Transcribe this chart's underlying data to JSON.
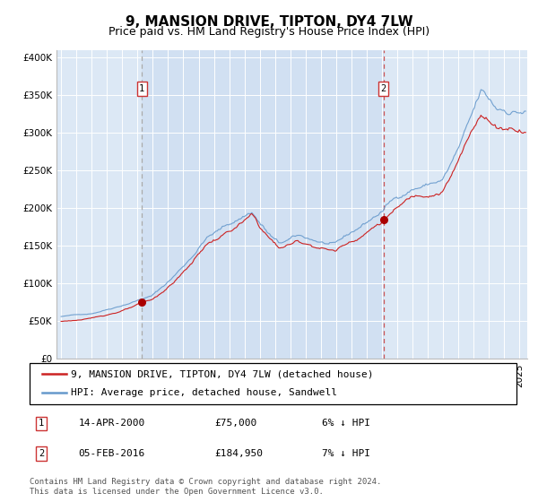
{
  "title": "9, MANSION DRIVE, TIPTON, DY4 7LW",
  "subtitle": "Price paid vs. HM Land Registry's House Price Index (HPI)",
  "xlim_start": 1994.7,
  "xlim_end": 2025.5,
  "ylim_min": 0,
  "ylim_max": 410000,
  "yticks": [
    0,
    50000,
    100000,
    150000,
    200000,
    250000,
    300000,
    350000,
    400000
  ],
  "ytick_labels": [
    "£0",
    "£50K",
    "£100K",
    "£150K",
    "£200K",
    "£250K",
    "£300K",
    "£350K",
    "£400K"
  ],
  "sale1_year": 2000.29,
  "sale1_price": 75000,
  "sale2_year": 2016.09,
  "sale2_price": 184950,
  "legend_line1": "9, MANSION DRIVE, TIPTON, DY4 7LW (detached house)",
  "legend_line2": "HPI: Average price, detached house, Sandwell",
  "annotation1_date": "14-APR-2000",
  "annotation1_price": "£75,000",
  "annotation1_pct": "6% ↓ HPI",
  "annotation2_date": "05-FEB-2016",
  "annotation2_price": "£184,950",
  "annotation2_pct": "7% ↓ HPI",
  "footnote": "Contains HM Land Registry data © Crown copyright and database right 2024.\nThis data is licensed under the Open Government Licence v3.0.",
  "plot_bg": "#dce8f5",
  "grid_color": "#ffffff",
  "hpi_color": "#6699cc",
  "price_color": "#cc2222",
  "sale_dot_color": "#aa0000",
  "vline1_color": "#888888",
  "vline2_color": "#cc4444",
  "title_fontsize": 11,
  "subtitle_fontsize": 9,
  "tick_fontsize": 7.5,
  "legend_fontsize": 8,
  "annot_fontsize": 8,
  "footnote_fontsize": 6.5
}
